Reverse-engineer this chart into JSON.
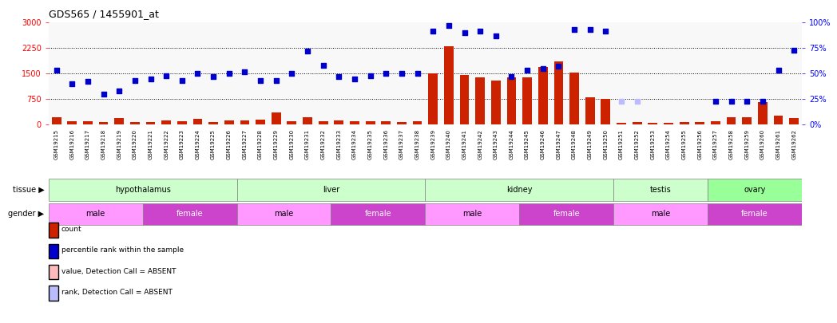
{
  "title": "GDS565 / 1455901_at",
  "samples": [
    "GSM19215",
    "GSM19216",
    "GSM19217",
    "GSM19218",
    "GSM19219",
    "GSM19220",
    "GSM19221",
    "GSM19222",
    "GSM19223",
    "GSM19224",
    "GSM19225",
    "GSM19226",
    "GSM19227",
    "GSM19228",
    "GSM19229",
    "GSM19230",
    "GSM19231",
    "GSM19232",
    "GSM19233",
    "GSM19234",
    "GSM19235",
    "GSM19236",
    "GSM19237",
    "GSM19238",
    "GSM19239",
    "GSM19240",
    "GSM19241",
    "GSM19242",
    "GSM19243",
    "GSM19244",
    "GSM19245",
    "GSM19246",
    "GSM19247",
    "GSM19248",
    "GSM19249",
    "GSM19250",
    "GSM19251",
    "GSM19252",
    "GSM19253",
    "GSM19254",
    "GSM19255",
    "GSM19256",
    "GSM19257",
    "GSM19258",
    "GSM19259",
    "GSM19260",
    "GSM19261",
    "GSM19262"
  ],
  "bar_values": [
    200,
    100,
    90,
    80,
    180,
    75,
    80,
    120,
    100,
    160,
    80,
    120,
    120,
    130,
    350,
    100,
    200,
    100,
    120,
    90,
    100,
    100,
    70,
    100,
    1500,
    2300,
    1450,
    1380,
    1300,
    1380,
    1380,
    1700,
    1850,
    1530,
    790,
    750,
    50,
    60,
    50,
    50,
    70,
    70,
    100,
    200,
    200,
    650,
    260,
    190
  ],
  "scatter_pct": [
    53,
    40,
    42,
    30,
    33,
    43,
    45,
    48,
    43,
    50,
    47,
    50,
    52,
    43,
    43,
    50,
    72,
    58,
    47,
    45,
    48,
    50,
    50,
    50,
    92,
    97,
    90,
    92,
    87,
    47,
    53,
    55,
    57,
    93,
    93,
    92,
    null,
    null,
    null,
    null,
    null,
    null,
    23,
    23,
    23,
    23,
    53,
    73
  ],
  "absent_scatter_pct": [
    null,
    null,
    null,
    null,
    null,
    null,
    null,
    null,
    null,
    null,
    null,
    null,
    null,
    null,
    null,
    null,
    null,
    null,
    null,
    null,
    null,
    null,
    null,
    null,
    null,
    null,
    null,
    null,
    null,
    null,
    null,
    null,
    null,
    null,
    null,
    null,
    23,
    23,
    null,
    null,
    null,
    null,
    null,
    null,
    null,
    null,
    null,
    null
  ],
  "tissue_groups": [
    {
      "label": "hypothalamus",
      "start": 0,
      "end": 12,
      "color": "#ccffcc"
    },
    {
      "label": "liver",
      "start": 12,
      "end": 24,
      "color": "#ccffcc"
    },
    {
      "label": "kidney",
      "start": 24,
      "end": 36,
      "color": "#ccffcc"
    },
    {
      "label": "testis",
      "start": 36,
      "end": 42,
      "color": "#ccffcc"
    },
    {
      "label": "ovary",
      "start": 42,
      "end": 48,
      "color": "#99ff99"
    }
  ],
  "gender_groups": [
    {
      "label": "male",
      "start": 0,
      "end": 6,
      "color": "#ff99ff"
    },
    {
      "label": "female",
      "start": 6,
      "end": 12,
      "color": "#cc44cc"
    },
    {
      "label": "male",
      "start": 12,
      "end": 18,
      "color": "#ff99ff"
    },
    {
      "label": "female",
      "start": 18,
      "end": 24,
      "color": "#cc44cc"
    },
    {
      "label": "male",
      "start": 24,
      "end": 30,
      "color": "#ff99ff"
    },
    {
      "label": "female",
      "start": 30,
      "end": 36,
      "color": "#cc44cc"
    },
    {
      "label": "male",
      "start": 36,
      "end": 42,
      "color": "#ff99ff"
    },
    {
      "label": "female",
      "start": 42,
      "end": 48,
      "color": "#cc44cc"
    }
  ],
  "ylim_left": [
    0,
    3000
  ],
  "ylim_right": [
    0,
    100
  ],
  "yticks_left": [
    0,
    750,
    1500,
    2250,
    3000
  ],
  "yticks_right": [
    0,
    25,
    50,
    75,
    100
  ],
  "bar_color": "#cc2200",
  "scatter_color": "#0000cc",
  "absent_bar_color": "#ffbbbb",
  "absent_scatter_color": "#bbbbff",
  "background_color": "#ffffff"
}
